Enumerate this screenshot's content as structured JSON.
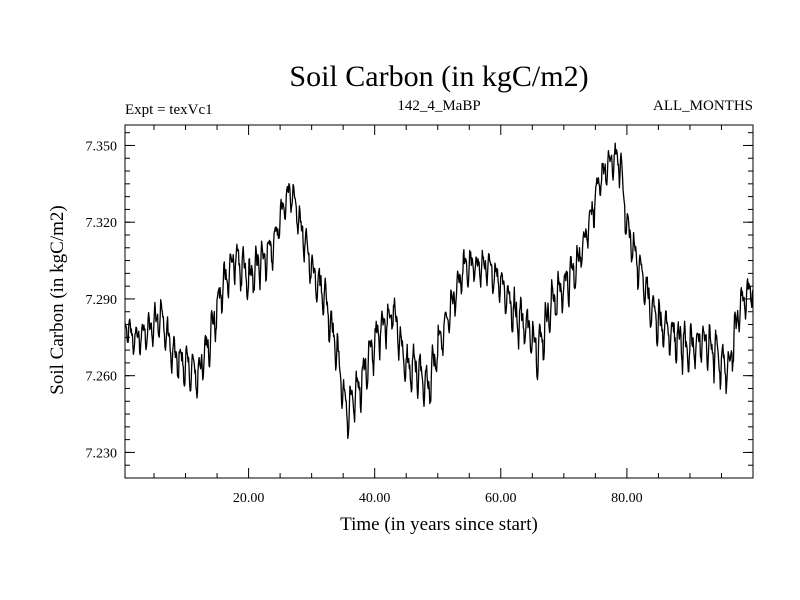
{
  "chart_data": {
    "type": "line",
    "title": "Soil Carbon (in kgC/m2)",
    "subtitle_left": "Expt = texVc1",
    "subtitle_center": "142_4_MaBP",
    "subtitle_right": "ALL_MONTHS",
    "xlabel": "Time (in years since start)",
    "ylabel": "Soil Carbon (in kgC/m2)",
    "xlim": [
      0.4,
      100
    ],
    "ylim": [
      7.22,
      7.358
    ],
    "x_ticks": [
      20,
      40,
      60,
      80
    ],
    "x_tick_labels": [
      "20.00",
      "40.00",
      "60.00",
      "80.00"
    ],
    "y_ticks": [
      7.23,
      7.26,
      7.29,
      7.32,
      7.35
    ],
    "y_tick_labels": [
      "7.230",
      "7.260",
      "7.290",
      "7.320",
      "7.350"
    ],
    "series": [
      {
        "name": "Soil Carbon",
        "color": "#000000",
        "envelope_x": [
          0.4,
          2,
          4,
          6,
          8,
          10,
          12,
          14,
          16,
          18,
          20,
          22,
          24,
          25,
          26.5,
          28,
          30,
          32,
          34,
          35.5,
          37,
          39,
          41,
          43,
          45,
          47,
          48.5,
          50,
          52,
          54,
          56,
          58,
          60,
          62,
          64,
          66,
          68,
          70,
          72,
          74,
          76,
          78,
          79,
          80,
          82,
          84,
          86,
          88,
          90,
          92,
          94,
          96,
          98,
          100
        ],
        "envelope_mid": [
          7.279,
          7.274,
          7.277,
          7.284,
          7.268,
          7.264,
          7.26,
          7.276,
          7.296,
          7.306,
          7.297,
          7.305,
          7.311,
          7.321,
          7.333,
          7.321,
          7.302,
          7.292,
          7.27,
          7.245,
          7.252,
          7.266,
          7.279,
          7.285,
          7.263,
          7.262,
          7.255,
          7.27,
          7.285,
          7.302,
          7.303,
          7.302,
          7.297,
          7.285,
          7.28,
          7.27,
          7.288,
          7.295,
          7.302,
          7.32,
          7.338,
          7.345,
          7.343,
          7.318,
          7.302,
          7.285,
          7.278,
          7.275,
          7.27,
          7.274,
          7.269,
          7.262,
          7.288,
          7.295
        ],
        "envelope_amp": [
          0.006,
          0.008,
          0.009,
          0.009,
          0.01,
          0.01,
          0.011,
          0.011,
          0.011,
          0.011,
          0.011,
          0.011,
          0.011,
          0.008,
          0.008,
          0.008,
          0.009,
          0.011,
          0.01,
          0.012,
          0.012,
          0.011,
          0.011,
          0.009,
          0.012,
          0.012,
          0.012,
          0.012,
          0.01,
          0.009,
          0.009,
          0.008,
          0.009,
          0.012,
          0.012,
          0.012,
          0.012,
          0.011,
          0.011,
          0.009,
          0.009,
          0.008,
          0.01,
          0.01,
          0.011,
          0.011,
          0.012,
          0.012,
          0.012,
          0.01,
          0.012,
          0.012,
          0.009,
          0.008
        ],
        "oscillation_period_years": 1.0
      }
    ]
  }
}
